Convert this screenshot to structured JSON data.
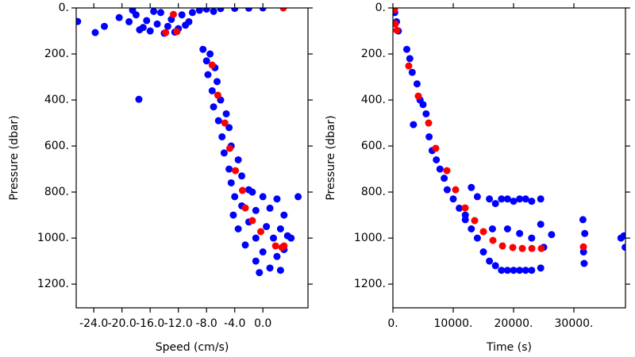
{
  "chart_data": [
    {
      "type": "scatter",
      "xlabel": "Speed (cm/s)",
      "ylabel": "Pressure (dbar)",
      "xlim": [
        -26.5,
        6.4
      ],
      "ylim": [
        0,
        1303
      ],
      "y_inverted": true,
      "xticks": [
        {
          "value": -24,
          "label": "-24.0"
        },
        {
          "value": -20,
          "label": "-20.0"
        },
        {
          "value": -16,
          "label": "-16.0"
        },
        {
          "value": -12,
          "label": "-12.0"
        },
        {
          "value": -8,
          "label": "-8.0"
        },
        {
          "value": -4,
          "label": "-4.0"
        },
        {
          "value": 0,
          "label": "0.0"
        }
      ],
      "yticks": [
        {
          "value": 0,
          "label": "0."
        },
        {
          "value": 200,
          "label": "200."
        },
        {
          "value": 400,
          "label": "400."
        },
        {
          "value": 600,
          "label": "600."
        },
        {
          "value": 800,
          "label": "800."
        },
        {
          "value": 1000,
          "label": "1000."
        },
        {
          "value": 1200,
          "label": "1200."
        }
      ],
      "series": [
        {
          "color": "#0000ff",
          "x": [
            -26.3,
            -23.8,
            -22.5,
            -20.4,
            -19,
            -18,
            -17,
            -16,
            -15,
            -14,
            -13,
            -12,
            -11.5,
            -11,
            -10,
            -9,
            -8,
            -6,
            -4,
            -2,
            0,
            -14.5,
            -16.5,
            -12.5,
            -18.5,
            -15.5,
            -13.5,
            -17.5,
            -10.5,
            -7,
            -17.6,
            -8.5,
            -7.5,
            -8,
            -6.8,
            -7.8,
            -6.5,
            -7.2,
            -6,
            -7,
            -5.2,
            -6.3,
            -4.8,
            -5.8,
            -4.5,
            -5.5,
            -3.5,
            -4.8,
            -3,
            -4.5,
            -2,
            -4,
            -1.5,
            0,
            2,
            -3,
            -1,
            1,
            3,
            -4.2,
            -2,
            0.5,
            2.5,
            -3.5,
            -1,
            1.5,
            3.5,
            -2.5,
            0,
            2,
            -1,
            1,
            3,
            -0.5,
            2.5,
            5,
            4
          ],
          "y": [
            59,
            107,
            80,
            42,
            60,
            30,
            85,
            100,
            70,
            110,
            50,
            90,
            30,
            75,
            20,
            10,
            5,
            3,
            2,
            1,
            0,
            20,
            55,
            105,
            10,
            15,
            80,
            95,
            60,
            15,
            397,
            180,
            200,
            230,
            260,
            290,
            320,
            360,
            400,
            430,
            460,
            490,
            520,
            560,
            600,
            630,
            660,
            700,
            730,
            760,
            790,
            820,
            800,
            820,
            830,
            860,
            880,
            870,
            900,
            900,
            930,
            950,
            960,
            960,
            1000,
            1000,
            990,
            1030,
            1060,
            1080,
            1100,
            1130,
            1050,
            1150,
            1140,
            820,
            1000
          ]
        },
        {
          "color": "#ff0000",
          "x": [
            2.9,
            -13.8,
            -12.7,
            -12.2,
            -7.2,
            -6.4,
            -5.4,
            -4.7,
            -3.9,
            -2.9,
            -2.5,
            -1.5,
            -0.3,
            1.8,
            2.7,
            3.0
          ],
          "y": [
            0,
            107,
            28,
            103,
            248,
            379,
            500,
            610,
            707,
            793,
            869,
            924,
            972,
            1034,
            1041,
            1034
          ]
        }
      ]
    },
    {
      "type": "scatter",
      "xlabel": "Time (s)",
      "ylabel": "Pressure (dbar)",
      "xlim": [
        0,
        38550
      ],
      "ylim": [
        0,
        1303
      ],
      "y_inverted": true,
      "xticks": [
        {
          "value": 0,
          "label": "0."
        },
        {
          "value": 10000,
          "label": "10000."
        },
        {
          "value": 20000,
          "label": "20000."
        },
        {
          "value": 30000,
          "label": "30000."
        }
      ],
      "yticks": [
        {
          "value": 0,
          "label": "0."
        },
        {
          "value": 200,
          "label": "200."
        },
        {
          "value": 400,
          "label": "400."
        },
        {
          "value": 600,
          "label": "600."
        },
        {
          "value": 800,
          "label": "800."
        },
        {
          "value": 1000,
          "label": "1000."
        },
        {
          "value": 1200,
          "label": "1200."
        }
      ],
      "series": [
        {
          "color": "#0000ff",
          "x": [
            0,
            300,
            600,
            900,
            2300,
            2800,
            3200,
            4000,
            4500,
            5000,
            5500,
            3400,
            6000,
            6500,
            7200,
            7800,
            8500,
            9000,
            10000,
            11000,
            12000,
            13000,
            14000,
            15000,
            16000,
            17000,
            18000,
            19000,
            20000,
            21000,
            22000,
            23000,
            24500,
            25000,
            16000,
            17000,
            18000,
            19000,
            20000,
            21000,
            22000,
            23000,
            24500,
            12000,
            14000,
            13000,
            16500,
            19000,
            21000,
            23000,
            24500,
            26300,
            31500,
            31800,
            31600,
            31700,
            38300,
            38500,
            37800
          ],
          "y": [
            0,
            20,
            60,
            100,
            180,
            220,
            280,
            330,
            400,
            420,
            460,
            507,
            560,
            620,
            660,
            700,
            740,
            790,
            830,
            870,
            900,
            960,
            1000,
            1060,
            1100,
            1120,
            1140,
            1140,
            1140,
            1140,
            1140,
            1140,
            1130,
            1040,
            830,
            850,
            830,
            830,
            840,
            830,
            830,
            840,
            830,
            920,
            820,
            780,
            960,
            960,
            980,
            1000,
            940,
            985,
            920,
            980,
            1060,
            1110,
            990,
            1040,
            1000
          ]
        },
        {
          "color": "#ff0000",
          "x": [
            260,
            400,
            660,
            2630,
            4210,
            5920,
            7100,
            8950,
            10390,
            11970,
            13550,
            15000,
            16580,
            18160,
            19870,
            21450,
            23030,
            24600,
            31580
          ],
          "y": [
            7,
            69,
            97,
            252,
            383,
            500,
            610,
            707,
            790,
            869,
            924,
            972,
            1010,
            1034,
            1041,
            1045,
            1045,
            1045,
            1038
          ]
        }
      ]
    }
  ]
}
